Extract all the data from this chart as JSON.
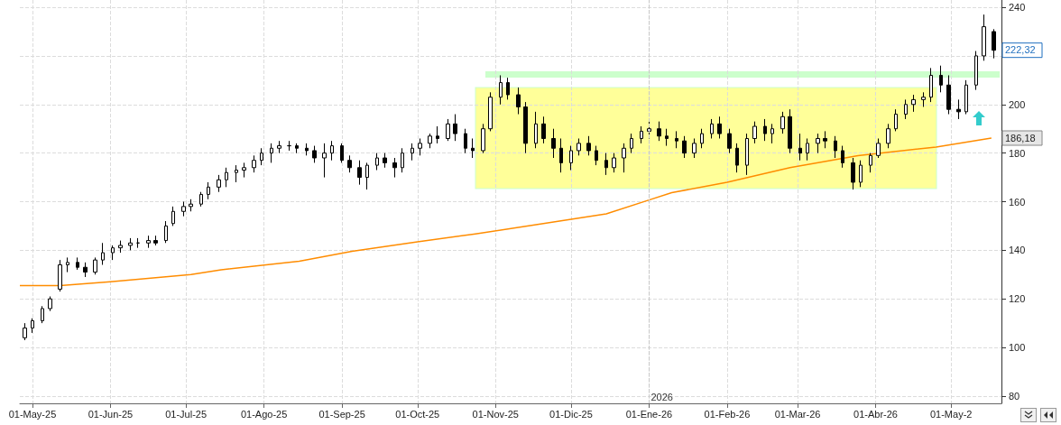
{
  "chart_data": {
    "type": "candlestick",
    "xlim": [
      "2025-04-26",
      "2026-05-21"
    ],
    "xticks": [
      {
        "value": "2025-05-01",
        "label": "01-May-25"
      },
      {
        "value": "2025-06-01",
        "label": "01-Jun-25"
      },
      {
        "value": "2025-07-01",
        "label": "01-Jul-25"
      },
      {
        "value": "2025-08-01",
        "label": "01-Ago-25"
      },
      {
        "value": "2025-09-01",
        "label": "01-Sep-25"
      },
      {
        "value": "2025-10-01",
        "label": "01-Oct-25"
      },
      {
        "value": "2025-11-01",
        "label": "01-Nov-25"
      },
      {
        "value": "2025-12-01",
        "label": "01-Dic-25"
      },
      {
        "value": "2026-01-01",
        "label": "01-Ene-26"
      },
      {
        "value": "2026-02-01",
        "label": "01-Feb-26"
      },
      {
        "value": "2026-03-01",
        "label": "01-Mar-26"
      },
      {
        "value": "2026-04-01",
        "label": "01-Abr-26"
      },
      {
        "value": "2026-05-01",
        "label": "01-May-2"
      }
    ],
    "ylim": [
      77,
      243
    ],
    "yticks": [
      80,
      100,
      120,
      140,
      160,
      180,
      200,
      {
        "value": 220,
        "label": null
      },
      240
    ],
    "grid": true,
    "series": [
      {
        "color": "#000000",
        "x": [
          "2025-04-28",
          "2025-05-01",
          "2025-05-05",
          "2025-05-08",
          "2025-05-12",
          "2025-05-15",
          "2025-05-19",
          "2025-05-22",
          "2025-05-26",
          "2025-05-29",
          "2025-06-02",
          "2025-06-05",
          "2025-06-09",
          "2025-06-12",
          "2025-06-16",
          "2025-06-19",
          "2025-06-23",
          "2025-06-26",
          "2025-06-30",
          "2025-07-03",
          "2025-07-07",
          "2025-07-10",
          "2025-07-14",
          "2025-07-17",
          "2025-07-21",
          "2025-07-24",
          "2025-07-28",
          "2025-07-31",
          "2025-08-04",
          "2025-08-07",
          "2025-08-11",
          "2025-08-14",
          "2025-08-18",
          "2025-08-21",
          "2025-08-25",
          "2025-08-28",
          "2025-09-01",
          "2025-09-04",
          "2025-09-08",
          "2025-09-11",
          "2025-09-15",
          "2025-09-18",
          "2025-09-22",
          "2025-09-25",
          "2025-09-29",
          "2025-10-02",
          "2025-10-06",
          "2025-10-09",
          "2025-10-13",
          "2025-10-16",
          "2025-10-20",
          "2025-10-23",
          "2025-10-27",
          "2025-10-30",
          "2025-11-03",
          "2025-11-06",
          "2025-11-10",
          "2025-11-13",
          "2025-11-17",
          "2025-11-20",
          "2025-11-24",
          "2025-11-27",
          "2025-12-01",
          "2025-12-04",
          "2025-12-08",
          "2025-12-11",
          "2025-12-15",
          "2025-12-18",
          "2025-12-22",
          "2025-12-25",
          "2025-12-29",
          "2026-01-01",
          "2026-01-05",
          "2026-01-08",
          "2026-01-12",
          "2026-01-15",
          "2026-01-19",
          "2026-01-22",
          "2026-01-26",
          "2026-01-29",
          "2026-02-02",
          "2026-02-05",
          "2026-02-09",
          "2026-02-12",
          "2026-02-16",
          "2026-02-19",
          "2026-02-23",
          "2026-02-26",
          "2026-03-02",
          "2026-03-05",
          "2026-03-09",
          "2026-03-12",
          "2026-03-16",
          "2026-03-19",
          "2026-03-23",
          "2026-03-26",
          "2026-03-30",
          "2026-04-02",
          "2026-04-06",
          "2026-04-09",
          "2026-04-13",
          "2026-04-16",
          "2026-04-20",
          "2026-04-23",
          "2026-04-27",
          "2026-04-30",
          "2026-05-04",
          "2026-05-07",
          "2026-05-11",
          "2026-05-14",
          "2026-05-18"
        ],
        "ohlc": [
          [
            104,
            110,
            103,
            108
          ],
          [
            108,
            112,
            106,
            111
          ],
          [
            111,
            117,
            110,
            116
          ],
          [
            116,
            121,
            115,
            120
          ],
          [
            124,
            136,
            123,
            134
          ],
          [
            134,
            137,
            131,
            135
          ],
          [
            135,
            137,
            132,
            133
          ],
          [
            133,
            135,
            129,
            131
          ],
          [
            131,
            137,
            130,
            136
          ],
          [
            136,
            143,
            134,
            139
          ],
          [
            139,
            142,
            136,
            141
          ],
          [
            141,
            144,
            139,
            142
          ],
          [
            142,
            145,
            140,
            143
          ],
          [
            143,
            145,
            141,
            143
          ],
          [
            143,
            146,
            141,
            144
          ],
          [
            144,
            146,
            142,
            143
          ],
          [
            144,
            152,
            143,
            150
          ],
          [
            151,
            158,
            150,
            156
          ],
          [
            156,
            160,
            154,
            158
          ],
          [
            158,
            161,
            156,
            159
          ],
          [
            159,
            164,
            158,
            163
          ],
          [
            163,
            168,
            161,
            166
          ],
          [
            166,
            171,
            164,
            169
          ],
          [
            169,
            174,
            166,
            172
          ],
          [
            172,
            175,
            168,
            173
          ],
          [
            173,
            176,
            170,
            174
          ],
          [
            174,
            179,
            172,
            177
          ],
          [
            177,
            182,
            175,
            180
          ],
          [
            180,
            184,
            176,
            182
          ],
          [
            182,
            185,
            180,
            183
          ],
          [
            183,
            185,
            181,
            183
          ],
          [
            183,
            184,
            180,
            182
          ],
          [
            182,
            184,
            179,
            181
          ],
          [
            181,
            183,
            176,
            178
          ],
          [
            178,
            184,
            170,
            180
          ],
          [
            180,
            185,
            177,
            183
          ],
          [
            183,
            184,
            176,
            177
          ],
          [
            177,
            179,
            172,
            174
          ],
          [
            174,
            177,
            167,
            170
          ],
          [
            170,
            176,
            165,
            175
          ],
          [
            175,
            180,
            173,
            178
          ],
          [
            178,
            180,
            174,
            176
          ],
          [
            176,
            178,
            170,
            174
          ],
          [
            174,
            182,
            172,
            180
          ],
          [
            180,
            184,
            177,
            182
          ],
          [
            182,
            186,
            179,
            184
          ],
          [
            184,
            188,
            182,
            187
          ],
          [
            187,
            191,
            184,
            186
          ],
          [
            186,
            194,
            185,
            192
          ],
          [
            192,
            196,
            185,
            188
          ],
          [
            188,
            190,
            180,
            182
          ],
          [
            182,
            186,
            178,
            181
          ],
          [
            181,
            192,
            180,
            190
          ],
          [
            190,
            205,
            189,
            203
          ],
          [
            203,
            212,
            200,
            209
          ],
          [
            209,
            211,
            202,
            204
          ],
          [
            204,
            207,
            196,
            199
          ],
          [
            199,
            201,
            180,
            184
          ],
          [
            184,
            197,
            182,
            192
          ],
          [
            192,
            195,
            184,
            186
          ],
          [
            186,
            190,
            178,
            182
          ],
          [
            182,
            186,
            172,
            176
          ],
          [
            176,
            183,
            173,
            181
          ],
          [
            181,
            186,
            179,
            184
          ],
          [
            184,
            187,
            179,
            181
          ],
          [
            181,
            183,
            175,
            177
          ],
          [
            177,
            180,
            171,
            174
          ],
          [
            174,
            180,
            172,
            178
          ],
          [
            178,
            184,
            172,
            182
          ],
          [
            182,
            188,
            180,
            186
          ],
          [
            186,
            191,
            184,
            189
          ],
          [
            189,
            193,
            186,
            190
          ],
          [
            190,
            193,
            185,
            187
          ],
          [
            187,
            190,
            183,
            186
          ],
          [
            186,
            189,
            182,
            185
          ],
          [
            185,
            187,
            178,
            180
          ],
          [
            180,
            186,
            178,
            184
          ],
          [
            184,
            190,
            182,
            188
          ],
          [
            188,
            194,
            186,
            192
          ],
          [
            192,
            195,
            186,
            188
          ],
          [
            188,
            190,
            180,
            182
          ],
          [
            182,
            184,
            172,
            175
          ],
          [
            175,
            188,
            171,
            186
          ],
          [
            186,
            193,
            184,
            191
          ],
          [
            191,
            194,
            185,
            188
          ],
          [
            188,
            192,
            184,
            190
          ],
          [
            190,
            197,
            188,
            195
          ],
          [
            195,
            198,
            180,
            182
          ],
          [
            182,
            188,
            177,
            180
          ],
          [
            180,
            186,
            177,
            184
          ],
          [
            184,
            188,
            180,
            186
          ],
          [
            186,
            189,
            182,
            185
          ],
          [
            185,
            187,
            178,
            181
          ],
          [
            181,
            183,
            174,
            176
          ],
          [
            176,
            178,
            165,
            168
          ],
          [
            168,
            177,
            166,
            175
          ],
          [
            175,
            180,
            172,
            179
          ],
          [
            179,
            186,
            178,
            184
          ],
          [
            184,
            192,
            182,
            190
          ],
          [
            190,
            198,
            189,
            196
          ],
          [
            196,
            202,
            194,
            200
          ],
          [
            200,
            204,
            197,
            202
          ],
          [
            202,
            205,
            199,
            203
          ],
          [
            203,
            215,
            201,
            212
          ],
          [
            212,
            216,
            205,
            208
          ],
          [
            208,
            212,
            196,
            198
          ],
          [
            198,
            202,
            194,
            197
          ],
          [
            197,
            210,
            196,
            208
          ],
          [
            208,
            222,
            206,
            220
          ],
          [
            220,
            237,
            218,
            232
          ],
          [
            230,
            231,
            219,
            222.32
          ]
        ]
      },
      {
        "type": "line",
        "color": "#ff8c00",
        "x": [
          "2025-04-26",
          "2025-05-12",
          "2025-06-01",
          "2025-07-03",
          "2025-07-15",
          "2025-08-15",
          "2025-09-05",
          "2025-10-01",
          "2025-10-24",
          "2025-11-20",
          "2025-12-15",
          "2026-01-01",
          "2026-01-10",
          "2026-02-01",
          "2026-02-26",
          "2026-03-25",
          "2026-04-25",
          "2026-05-17"
        ],
        "values": [
          125.5,
          125.5,
          127,
          130,
          132,
          135.5,
          139.6,
          143.5,
          146.7,
          151,
          155,
          160.7,
          163.7,
          168,
          174,
          178.9,
          182.5,
          186.18
        ]
      }
    ],
    "ref_lines": [
      {
        "axis": "x",
        "value": "2026-01-01",
        "label": "2026",
        "line_style": "dashed",
        "color": "#c8c8c8"
      }
    ],
    "annotations": [
      {
        "text": "222,32",
        "x": "2026-05-18",
        "y": 222.32
      },
      {
        "text": "186,18",
        "x": "2026-05-17",
        "y": 186.18
      }
    ]
  }
}
